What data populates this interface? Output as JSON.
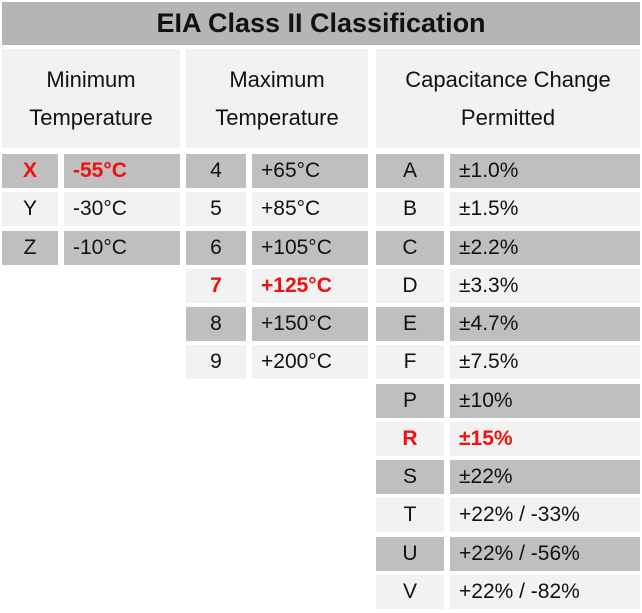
{
  "title": "EIA Class II Classification",
  "colors": {
    "title_bg": "#b5b5b5",
    "row_gray": "#bfbfbf",
    "row_light": "#f2f2f2",
    "highlight_red": "#f01010",
    "text": "#111111",
    "background": "#ffffff"
  },
  "chart_data": {
    "type": "table",
    "title": "EIA Class II Classification",
    "columns": [
      {
        "id": "minimum-temperature",
        "header_line1": "Minimum",
        "header_line2": "Temperature",
        "rows": [
          {
            "code": "X",
            "value": "-55°C",
            "highlight": true
          },
          {
            "code": "Y",
            "value": "-30°C",
            "highlight": false
          },
          {
            "code": "Z",
            "value": "-10°C",
            "highlight": false
          }
        ]
      },
      {
        "id": "maximum-temperature",
        "header_line1": "Maximum",
        "header_line2": "Temperature",
        "rows": [
          {
            "code": "4",
            "value": "+65°C",
            "highlight": false
          },
          {
            "code": "5",
            "value": "+85°C",
            "highlight": false
          },
          {
            "code": "6",
            "value": "+105°C",
            "highlight": false
          },
          {
            "code": "7",
            "value": "+125°C",
            "highlight": true
          },
          {
            "code": "8",
            "value": "+150°C",
            "highlight": false
          },
          {
            "code": "9",
            "value": "+200°C",
            "highlight": false
          }
        ]
      },
      {
        "id": "capacitance-change-permitted",
        "header_line1": "Capacitance Change",
        "header_line2": "Permitted",
        "rows": [
          {
            "code": "A",
            "value": "±1.0%",
            "highlight": false
          },
          {
            "code": "B",
            "value": "±1.5%",
            "highlight": false
          },
          {
            "code": "C",
            "value": "±2.2%",
            "highlight": false
          },
          {
            "code": "D",
            "value": "±3.3%",
            "highlight": false
          },
          {
            "code": "E",
            "value": "±4.7%",
            "highlight": false
          },
          {
            "code": "F",
            "value": "±7.5%",
            "highlight": false
          },
          {
            "code": "P",
            "value": "±10%",
            "highlight": false
          },
          {
            "code": "R",
            "value": "±15%",
            "highlight": true
          },
          {
            "code": "S",
            "value": "±22%",
            "highlight": false
          },
          {
            "code": "T",
            "value": "+22% / -33%",
            "highlight": false
          },
          {
            "code": "U",
            "value": "+22% / -56%",
            "highlight": false
          },
          {
            "code": "V",
            "value": "+22% / -82%",
            "highlight": false
          }
        ]
      }
    ]
  }
}
